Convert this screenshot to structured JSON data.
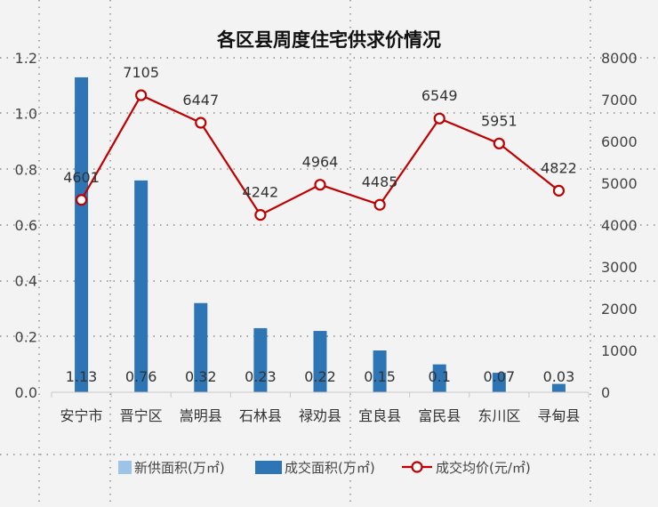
{
  "chart_data": {
    "type": "bar",
    "title": "各区县周度住宅供求价情况",
    "categories": [
      "安宁市",
      "晋宁区",
      "嵩明县",
      "石林县",
      "禄劝县",
      "宜良县",
      "富民县",
      "东川区",
      "寻甸县"
    ],
    "series": [
      {
        "name": "新供面积(万㎡)",
        "type": "bar",
        "axis": "left",
        "color": "#9dc3e6",
        "values": [
          0,
          0,
          0,
          0,
          0,
          0,
          0,
          0,
          0
        ]
      },
      {
        "name": "成交面积(万㎡)",
        "type": "bar",
        "axis": "left",
        "color": "#2e75b6",
        "values": [
          1.13,
          0.76,
          0.32,
          0.23,
          0.22,
          0.15,
          0.1,
          0.07,
          0.03
        ]
      },
      {
        "name": "成交均价(元/㎡)",
        "type": "line",
        "axis": "right",
        "color": "#c00000",
        "values": [
          4601,
          7105,
          6447,
          4242,
          4964,
          4485,
          6549,
          5951,
          4822
        ]
      }
    ],
    "bar_labels": [
      "1.13",
      "0.76",
      "0.32",
      "0.23",
      "0.22",
      "0.15",
      "0.1",
      "0.07",
      "0.03"
    ],
    "line_labels": [
      "4601",
      "7105",
      "6447",
      "4242",
      "4964",
      "4485",
      "6549",
      "5951",
      "4822"
    ],
    "y_left": {
      "ticks": [
        "0.0",
        "0.2",
        "0.4",
        "0.6",
        "0.8",
        "1.0",
        "1.2"
      ],
      "range": [
        0,
        1.2
      ]
    },
    "y_right": {
      "ticks": [
        "0",
        "1000",
        "2000",
        "3000",
        "4000",
        "5000",
        "6000",
        "7000",
        "8000"
      ],
      "range": [
        0,
        8000
      ]
    },
    "grid": true,
    "legend_position": "bottom"
  }
}
